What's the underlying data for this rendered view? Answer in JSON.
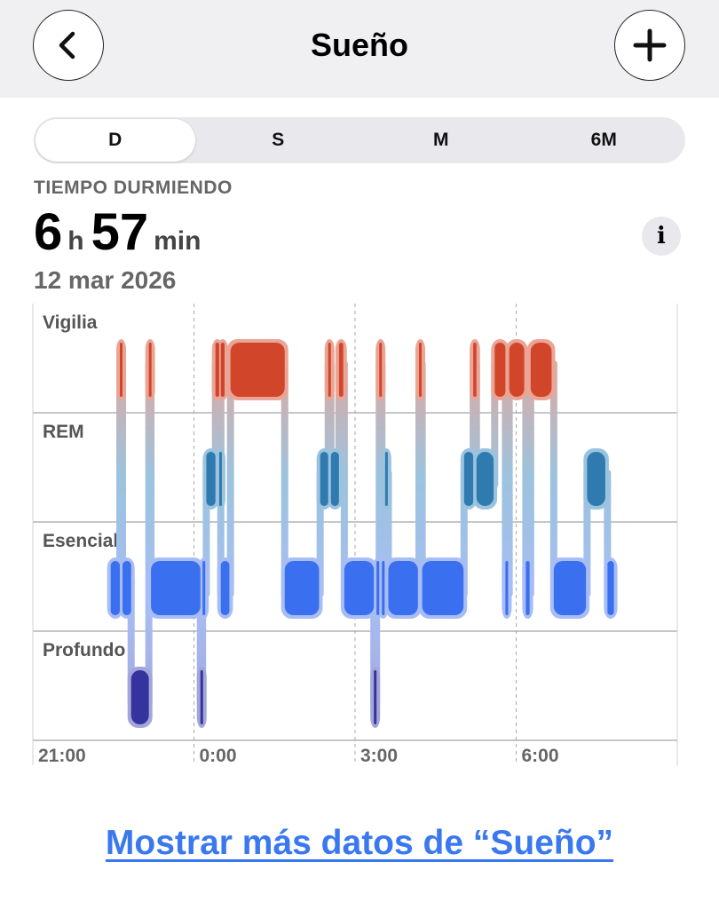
{
  "header": {
    "title": "Sueño",
    "back_icon": "chevron-left-icon",
    "add_icon": "plus-icon"
  },
  "segmented": [
    {
      "label": "D",
      "selected": true
    },
    {
      "label": "S"
    },
    {
      "label": "M"
    },
    {
      "label": "6M"
    }
  ],
  "summary": {
    "label": "TIEMPO DURMIENDO",
    "hours": "6",
    "hours_unit": "h",
    "minutes": "57",
    "minutes_unit": "min",
    "date": "12 mar 2026",
    "info_icon": "i"
  },
  "chart_data": {
    "type": "timeline",
    "stages": [
      "Vigilia",
      "REM",
      "Esencial",
      "Profundo"
    ],
    "x_ticks": [
      "21:00",
      "0:00",
      "3:00",
      "6:00"
    ],
    "x_unit": "hours since 21:00",
    "x_range": [
      0,
      12
    ],
    "colors": {
      "Vigilia": "#d1462a",
      "REM": "#2f7bb0",
      "Esencial": "#3a6ff0",
      "Profundo": "#35339e"
    },
    "halo": {
      "Vigilia": "#eaa596",
      "REM": "#9cc3de",
      "Esencial": "#a7bdf3",
      "Profundo": "#a3a6da"
    },
    "segments": [
      [
        "Esencial",
        1.45,
        1.62
      ],
      [
        "Vigilia",
        1.62,
        1.67
      ],
      [
        "Esencial",
        1.67,
        1.83
      ],
      [
        "Profundo",
        1.83,
        2.16
      ],
      [
        "Vigilia",
        2.16,
        2.2
      ],
      [
        "Esencial",
        2.2,
        3.12
      ],
      [
        "Profundo",
        3.12,
        3.16
      ],
      [
        "Esencial",
        3.16,
        3.21
      ],
      [
        "REM",
        3.23,
        3.4
      ],
      [
        "Vigilia",
        3.4,
        3.47
      ],
      [
        "REM",
        3.47,
        3.5
      ],
      [
        "Vigilia",
        3.5,
        3.57
      ],
      [
        "Esencial",
        3.5,
        3.66
      ],
      [
        "Vigilia",
        3.68,
        4.69
      ],
      [
        "Esencial",
        4.69,
        5.33
      ],
      [
        "REM",
        5.35,
        5.5
      ],
      [
        "Vigilia",
        5.5,
        5.55
      ],
      [
        "REM",
        5.55,
        5.7
      ],
      [
        "Vigilia",
        5.7,
        5.78
      ],
      [
        "Esencial",
        5.8,
        6.35
      ],
      [
        "Profundo",
        6.35,
        6.4
      ],
      [
        "Esencial",
        6.4,
        6.45
      ],
      [
        "Vigilia",
        6.45,
        6.5
      ],
      [
        "Esencial",
        6.5,
        6.55
      ],
      [
        "REM",
        6.56,
        6.6
      ],
      [
        "Esencial",
        6.62,
        7.17
      ],
      [
        "Vigilia",
        7.19,
        7.24
      ],
      [
        "Esencial",
        7.25,
        8.02
      ],
      [
        "REM",
        8.03,
        8.2
      ],
      [
        "Vigilia",
        8.2,
        8.26
      ],
      [
        "REM",
        8.26,
        8.58
      ],
      [
        "Vigilia",
        8.6,
        8.8
      ],
      [
        "Esencial",
        8.8,
        8.85
      ],
      [
        "Vigilia",
        8.87,
        9.15
      ],
      [
        "Esencial",
        9.18,
        9.25
      ],
      [
        "Vigilia",
        9.27,
        9.66
      ],
      [
        "Esencial",
        9.7,
        10.3
      ],
      [
        "REM",
        10.32,
        10.66
      ],
      [
        "Esencial",
        10.7,
        10.82
      ]
    ]
  },
  "footer": {
    "link": "Mostrar más datos de “Sueño”"
  }
}
